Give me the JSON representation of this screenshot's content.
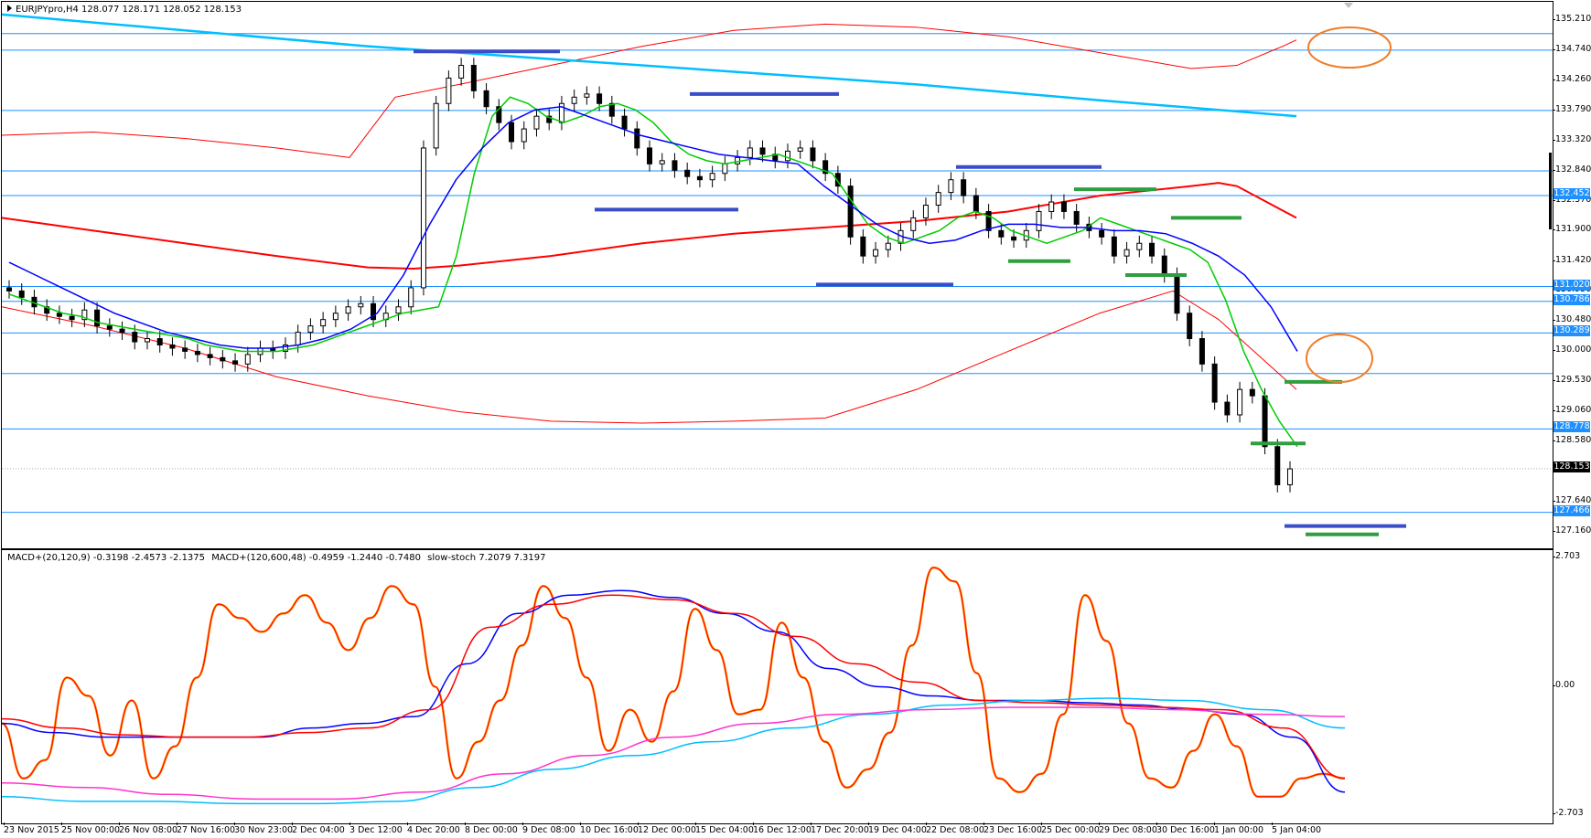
{
  "window": {
    "symbol_info": "EURJPYpro,H4  128.077 128.171 128.052 128.153"
  },
  "indicator": {
    "label_parts": [
      "MACD+(20,120,9) -0.3198 -2.4573 -2.1375",
      "MACD+(120,600,48) -0.4959 -1.2440 -0.7480",
      "slow-stoch 7.2079 7.3197"
    ],
    "scale": [
      "2.703",
      "0.00",
      "-2.703"
    ],
    "colors": {
      "macd_fast_main": "#0000ff",
      "macd_fast_signal": "#ff0000",
      "macd_slow_main": "#00bfff",
      "macd_slow_signal": "#ff33cc",
      "stoch_main": "#ff8c00",
      "stoch_signal": "#ff0000"
    }
  },
  "price_axis": {
    "ticks": [
      "135.210",
      "134.740",
      "134.260",
      "133.790",
      "133.320",
      "132.840",
      "132.370",
      "131.900",
      "131.420",
      "130.950",
      "130.480",
      "130.000",
      "129.530",
      "129.060",
      "128.580",
      "127.640",
      "127.160"
    ],
    "line_badges": [
      "132.452",
      "131.020",
      "130.786",
      "130.289",
      "128.778",
      "127.466"
    ],
    "bid_badge": "128.153"
  },
  "time_axis": {
    "labels": [
      "23 Nov 2015",
      "25 Nov 00:00",
      "26 Nov 08:00",
      "27 Nov 16:00",
      "30 Nov 23:00",
      "2 Dec 04:00",
      "3 Dec 12:00",
      "4 Dec 20:00",
      "8 Dec 00:00",
      "9 Dec 08:00",
      "10 Dec 16:00",
      "12 Dec 00:00",
      "15 Dec 04:00",
      "16 Dec 12:00",
      "17 Dec 20:00",
      "19 Dec 04:00",
      "22 Dec 08:00",
      "23 Dec 16:00",
      "25 Dec 00:00",
      "29 Dec 08:00",
      "30 Dec 16:00",
      "1 Jan 00:00",
      "5 Jan 04:00"
    ]
  },
  "chart_data": [
    {
      "type": "candlestick",
      "title": "EURJPYpro,H4",
      "ylim": [
        126.9,
        135.5
      ],
      "last": 128.153,
      "colors": {
        "bull_candle": "#ffffff",
        "bear_candle": "#000000",
        "ma_fast": "#00cc00",
        "ma_mid": "#0000ff",
        "ma_slow": "#ff0000",
        "ma_long": "#00bfff",
        "envelope": "#ff0000",
        "h_lines": "#1e90ff",
        "res_marks": "#3a4cc8",
        "sup_marks": "#2e9e3e",
        "highlight": "#f07d28"
      },
      "close_series": [
        130.95,
        130.85,
        130.7,
        130.6,
        130.55,
        130.5,
        130.65,
        130.4,
        130.35,
        130.3,
        130.15,
        130.2,
        130.1,
        130.05,
        130.0,
        129.95,
        129.9,
        129.85,
        129.8,
        129.95,
        130.05,
        130.0,
        130.1,
        130.3,
        130.4,
        130.5,
        130.6,
        130.7,
        130.75,
        130.5,
        130.6,
        130.7,
        131.0,
        133.2,
        133.9,
        134.3,
        134.5,
        134.1,
        133.85,
        133.6,
        133.3,
        133.5,
        133.7,
        133.6,
        133.9,
        134.0,
        134.05,
        133.9,
        133.7,
        133.5,
        133.2,
        132.95,
        133.0,
        132.85,
        132.75,
        132.7,
        132.8,
        132.95,
        133.05,
        133.2,
        133.1,
        133.0,
        133.15,
        133.2,
        133.0,
        132.8,
        132.6,
        131.8,
        131.5,
        131.6,
        131.7,
        131.9,
        132.1,
        132.3,
        132.5,
        132.7,
        132.45,
        132.2,
        131.9,
        131.8,
        131.75,
        131.9,
        132.2,
        132.35,
        132.2,
        132.0,
        131.9,
        131.8,
        131.5,
        131.6,
        131.7,
        131.5,
        131.2,
        130.6,
        130.2,
        129.8,
        129.2,
        129.0,
        129.4,
        129.3,
        128.5,
        127.9,
        128.15
      ],
      "ma_fast": [
        130.9,
        130.8,
        130.7,
        130.6,
        130.55,
        130.45,
        130.4,
        130.35,
        130.3,
        130.25,
        130.2,
        130.1,
        130.05,
        130.0,
        130.0,
        130.0,
        130.05,
        130.1,
        130.2,
        130.3,
        130.4,
        130.5,
        130.6,
        130.65,
        130.7,
        131.5,
        132.8,
        133.7,
        134.0,
        133.9,
        133.7,
        133.6,
        133.7,
        133.85,
        133.9,
        133.8,
        133.6,
        133.3,
        133.1,
        133.0,
        132.95,
        133.0,
        133.05,
        133.1,
        133.0,
        132.9,
        132.8,
        132.4,
        132.0,
        131.8,
        131.7,
        131.8,
        131.9,
        132.1,
        132.2,
        132.1,
        131.9,
        131.8,
        131.7,
        131.8,
        131.9,
        132.1,
        132.0,
        131.9,
        131.8,
        131.7,
        131.6,
        131.4,
        130.8,
        130.0,
        129.4,
        128.9,
        128.5
      ],
      "ma_mid": [
        131.4,
        131.2,
        131.0,
        130.8,
        130.6,
        130.45,
        130.3,
        130.2,
        130.1,
        130.05,
        130.05,
        130.1,
        130.2,
        130.35,
        130.6,
        131.2,
        132.0,
        132.7,
        133.2,
        133.6,
        133.8,
        133.85,
        133.7,
        133.55,
        133.4,
        133.3,
        133.2,
        133.1,
        133.05,
        133.0,
        132.95,
        132.6,
        132.3,
        132.0,
        131.8,
        131.7,
        131.75,
        131.9,
        132.0,
        132.0,
        131.95,
        131.95,
        131.9,
        131.9,
        131.85,
        131.7,
        131.5,
        131.2,
        130.7,
        130.0
      ]
    },
    {
      "type": "line",
      "title": "MACD+ / slow-stoch",
      "ylim": [
        -2.703,
        2.703
      ],
      "series": [
        {
          "name": "slow-stoch main",
          "values": [
            -0.8,
            -2.0,
            -1.6,
            0.2,
            -0.2,
            -1.5,
            -0.3,
            -2.0,
            -1.3,
            0.2,
            1.8,
            1.5,
            1.2,
            1.6,
            2.0,
            1.4,
            0.8,
            1.5,
            2.2,
            1.8,
            0.0,
            -2.0,
            -1.2,
            -0.3,
            0.9,
            2.2,
            1.5,
            0.2,
            -1.4,
            -0.5,
            -1.2,
            -0.1,
            1.7,
            0.8,
            -0.6,
            -0.5,
            1.4,
            0.2,
            -1.2,
            -2.2,
            -1.8,
            -1.0,
            0.9,
            2.6,
            2.3,
            0.3,
            -2.0,
            -2.3,
            -1.9,
            -0.6,
            2.0,
            1.0,
            -0.8,
            -2.0,
            -2.2,
            -1.4,
            -0.6,
            -1.3,
            -2.4,
            -2.4,
            -2.0,
            -1.9,
            -2.0
          ]
        },
        {
          "name": "MACD fast main",
          "values": [
            -0.8,
            -1.0,
            -1.1,
            -1.1,
            -1.1,
            -1.1,
            -0.9,
            -0.8,
            -0.65,
            0.5,
            1.6,
            2.0,
            2.1,
            1.95,
            1.6,
            1.2,
            0.4,
            0.0,
            -0.2,
            -0.3,
            -0.3,
            -0.35,
            -0.4,
            -0.5,
            -0.6,
            -1.1,
            -2.3
          ]
        },
        {
          "name": "MACD fast signal",
          "values": [
            -0.7,
            -0.9,
            -1.05,
            -1.1,
            -1.1,
            -1.0,
            -0.9,
            -0.5,
            1.3,
            1.8,
            2.0,
            1.9,
            1.6,
            1.1,
            0.5,
            0.1,
            -0.3,
            -0.35,
            -0.4,
            -0.45,
            -0.5,
            -0.9,
            -2.0
          ]
        },
        {
          "name": "MACD slow main",
          "values": [
            -2.4,
            -2.5,
            -2.5,
            -2.55,
            -2.55,
            -2.5,
            -2.2,
            -1.8,
            -1.5,
            -1.2,
            -0.9,
            -0.6,
            -0.4,
            -0.3,
            -0.25,
            -0.3,
            -0.5,
            -0.9
          ]
        },
        {
          "name": "MACD slow signal",
          "values": [
            -2.1,
            -2.2,
            -2.35,
            -2.45,
            -2.45,
            -2.3,
            -1.9,
            -1.5,
            -1.1,
            -0.8,
            -0.6,
            -0.5,
            -0.45,
            -0.45,
            -0.5,
            -0.6,
            -0.65
          ]
        }
      ]
    }
  ]
}
